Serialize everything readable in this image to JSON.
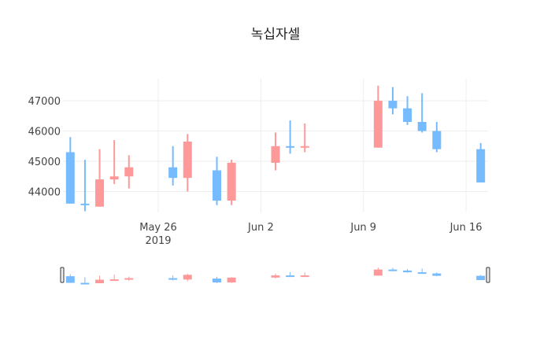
{
  "chart_data": {
    "type": "candlestick",
    "title": "녹십자셀",
    "xlabel": "",
    "ylabel": "",
    "x_ticks": [
      {
        "date": "2019-05-26",
        "label": "May 26",
        "sublabel": "2019"
      },
      {
        "date": "2019-06-02",
        "label": "Jun 2",
        "sublabel": ""
      },
      {
        "date": "2019-06-09",
        "label": "Jun 9",
        "sublabel": ""
      },
      {
        "date": "2019-06-16",
        "label": "Jun 16",
        "sublabel": ""
      }
    ],
    "y_ticks": [
      44000,
      45000,
      46000,
      47000
    ],
    "y_tick_labels": [
      "44000",
      "45000",
      "46000",
      "47000"
    ],
    "xlim": [
      "2019-05-19.5",
      "2019-06-17.5"
    ],
    "ylim": [
      43310,
      47730
    ],
    "increasing_color": "#FF9999",
    "decreasing_color": "#77BBFF",
    "grid": true,
    "rangeslider": true,
    "data": [
      {
        "date": "2019-05-20",
        "open": 45300,
        "high": 45800,
        "low": 43600,
        "close": 43600
      },
      {
        "date": "2019-05-21",
        "open": 43600,
        "high": 45050,
        "low": 43350,
        "close": 43550
      },
      {
        "date": "2019-05-22",
        "open": 43500,
        "high": 45400,
        "low": 43500,
        "close": 44400
      },
      {
        "date": "2019-05-23",
        "open": 44400,
        "high": 45700,
        "low": 44250,
        "close": 44500
      },
      {
        "date": "2019-05-24",
        "open": 44500,
        "high": 45200,
        "low": 44100,
        "close": 44800
      },
      {
        "date": "2019-05-27",
        "open": 44800,
        "high": 45500,
        "low": 44200,
        "close": 44450
      },
      {
        "date": "2019-05-28",
        "open": 44450,
        "high": 45900,
        "low": 44000,
        "close": 45650
      },
      {
        "date": "2019-05-30",
        "open": 44700,
        "high": 45150,
        "low": 43550,
        "close": 43700
      },
      {
        "date": "2019-05-31",
        "open": 43700,
        "high": 45050,
        "low": 43550,
        "close": 44950
      },
      {
        "date": "2019-06-03",
        "open": 44950,
        "high": 45950,
        "low": 44700,
        "close": 45500
      },
      {
        "date": "2019-06-04",
        "open": 45500,
        "high": 46350,
        "low": 45250,
        "close": 45450
      },
      {
        "date": "2019-06-05",
        "open": 45450,
        "high": 46250,
        "low": 45300,
        "close": 45500
      },
      {
        "date": "2019-06-10",
        "open": 45450,
        "high": 47500,
        "low": 45450,
        "close": 47000
      },
      {
        "date": "2019-06-11",
        "open": 47000,
        "high": 47450,
        "low": 46550,
        "close": 46750
      },
      {
        "date": "2019-06-12",
        "open": 46750,
        "high": 47150,
        "low": 46200,
        "close": 46300
      },
      {
        "date": "2019-06-13",
        "open": 46300,
        "high": 47250,
        "low": 45950,
        "close": 46000
      },
      {
        "date": "2019-06-14",
        "open": 46000,
        "high": 46300,
        "low": 45300,
        "close": 45400
      },
      {
        "date": "2019-06-17",
        "open": 45400,
        "high": 45600,
        "low": 44300,
        "close": 44300
      }
    ]
  }
}
